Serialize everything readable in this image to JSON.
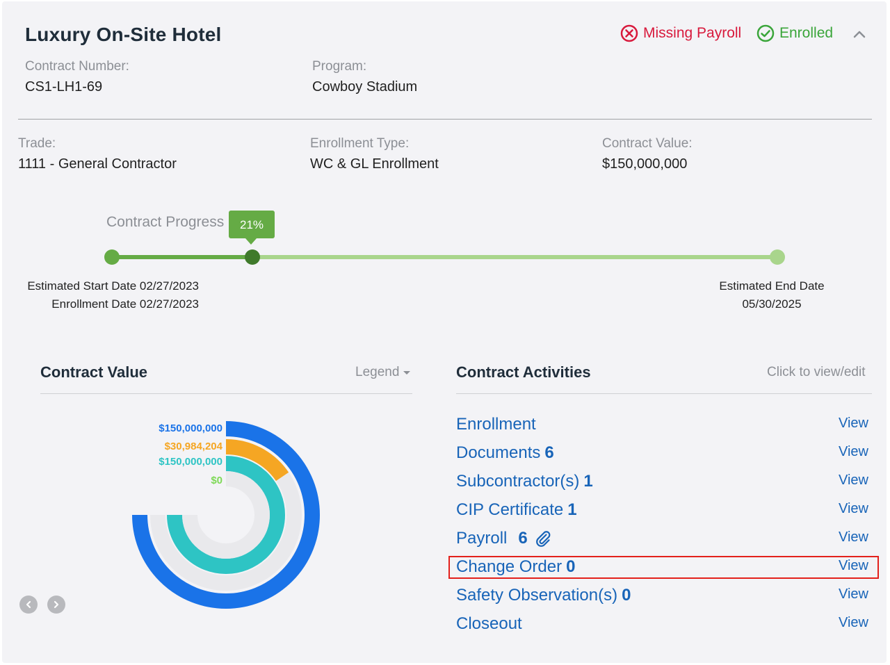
{
  "header": {
    "title": "Luxury On-Site Hotel",
    "status_missing": "Missing Payroll",
    "status_enrolled": "Enrolled",
    "colors": {
      "missing": "#d8193c",
      "enrolled": "#3aa53a"
    }
  },
  "info": {
    "contract_number_label": "Contract Number:",
    "contract_number": "CS1-LH1-69",
    "program_label": "Program:",
    "program": "Cowboy Stadium",
    "trade_label": "Trade:",
    "trade": "1111 - General Contractor",
    "enrollment_type_label": "Enrollment Type:",
    "enrollment_type": "WC & GL Enrollment",
    "contract_value_label": "Contract Value:",
    "contract_value": "$150,000,000"
  },
  "progress": {
    "label": "Contract Progress",
    "percent_text": "21%",
    "percent": 0.21,
    "start_date_text": "Estimated Start Date 02/27/2023",
    "enrollment_date_text": "Enrollment Date 02/27/2023",
    "end_date_label": "Estimated End Date",
    "end_date": "05/30/2025"
  },
  "contract_value_panel": {
    "title": "Contract Value",
    "legend_label": "Legend",
    "rings": [
      {
        "label": "$150,000,000",
        "color": "#1a73e8",
        "fraction": 1.0
      },
      {
        "label": "$30,984,204",
        "color": "#f5a623",
        "fraction": 0.2066
      },
      {
        "label": "$150,000,000",
        "color": "#2ec4c4",
        "fraction": 1.0
      },
      {
        "label": "$0",
        "color": "#7ed957",
        "fraction": 0.0
      }
    ]
  },
  "activities_panel": {
    "title": "Contract Activities",
    "hint": "Click to view/edit",
    "view_label": "View",
    "items": [
      {
        "name": "Enrollment",
        "count": ""
      },
      {
        "name": "Documents",
        "count": "6"
      },
      {
        "name": "Subcontractor(s)",
        "count": "1"
      },
      {
        "name": "CIP Certificate",
        "count": "1"
      },
      {
        "name": "Payroll",
        "count": "6"
      },
      {
        "name": "Change Order",
        "count": "0"
      },
      {
        "name": "Safety Observation(s)",
        "count": "0"
      },
      {
        "name": "Closeout",
        "count": ""
      }
    ]
  }
}
